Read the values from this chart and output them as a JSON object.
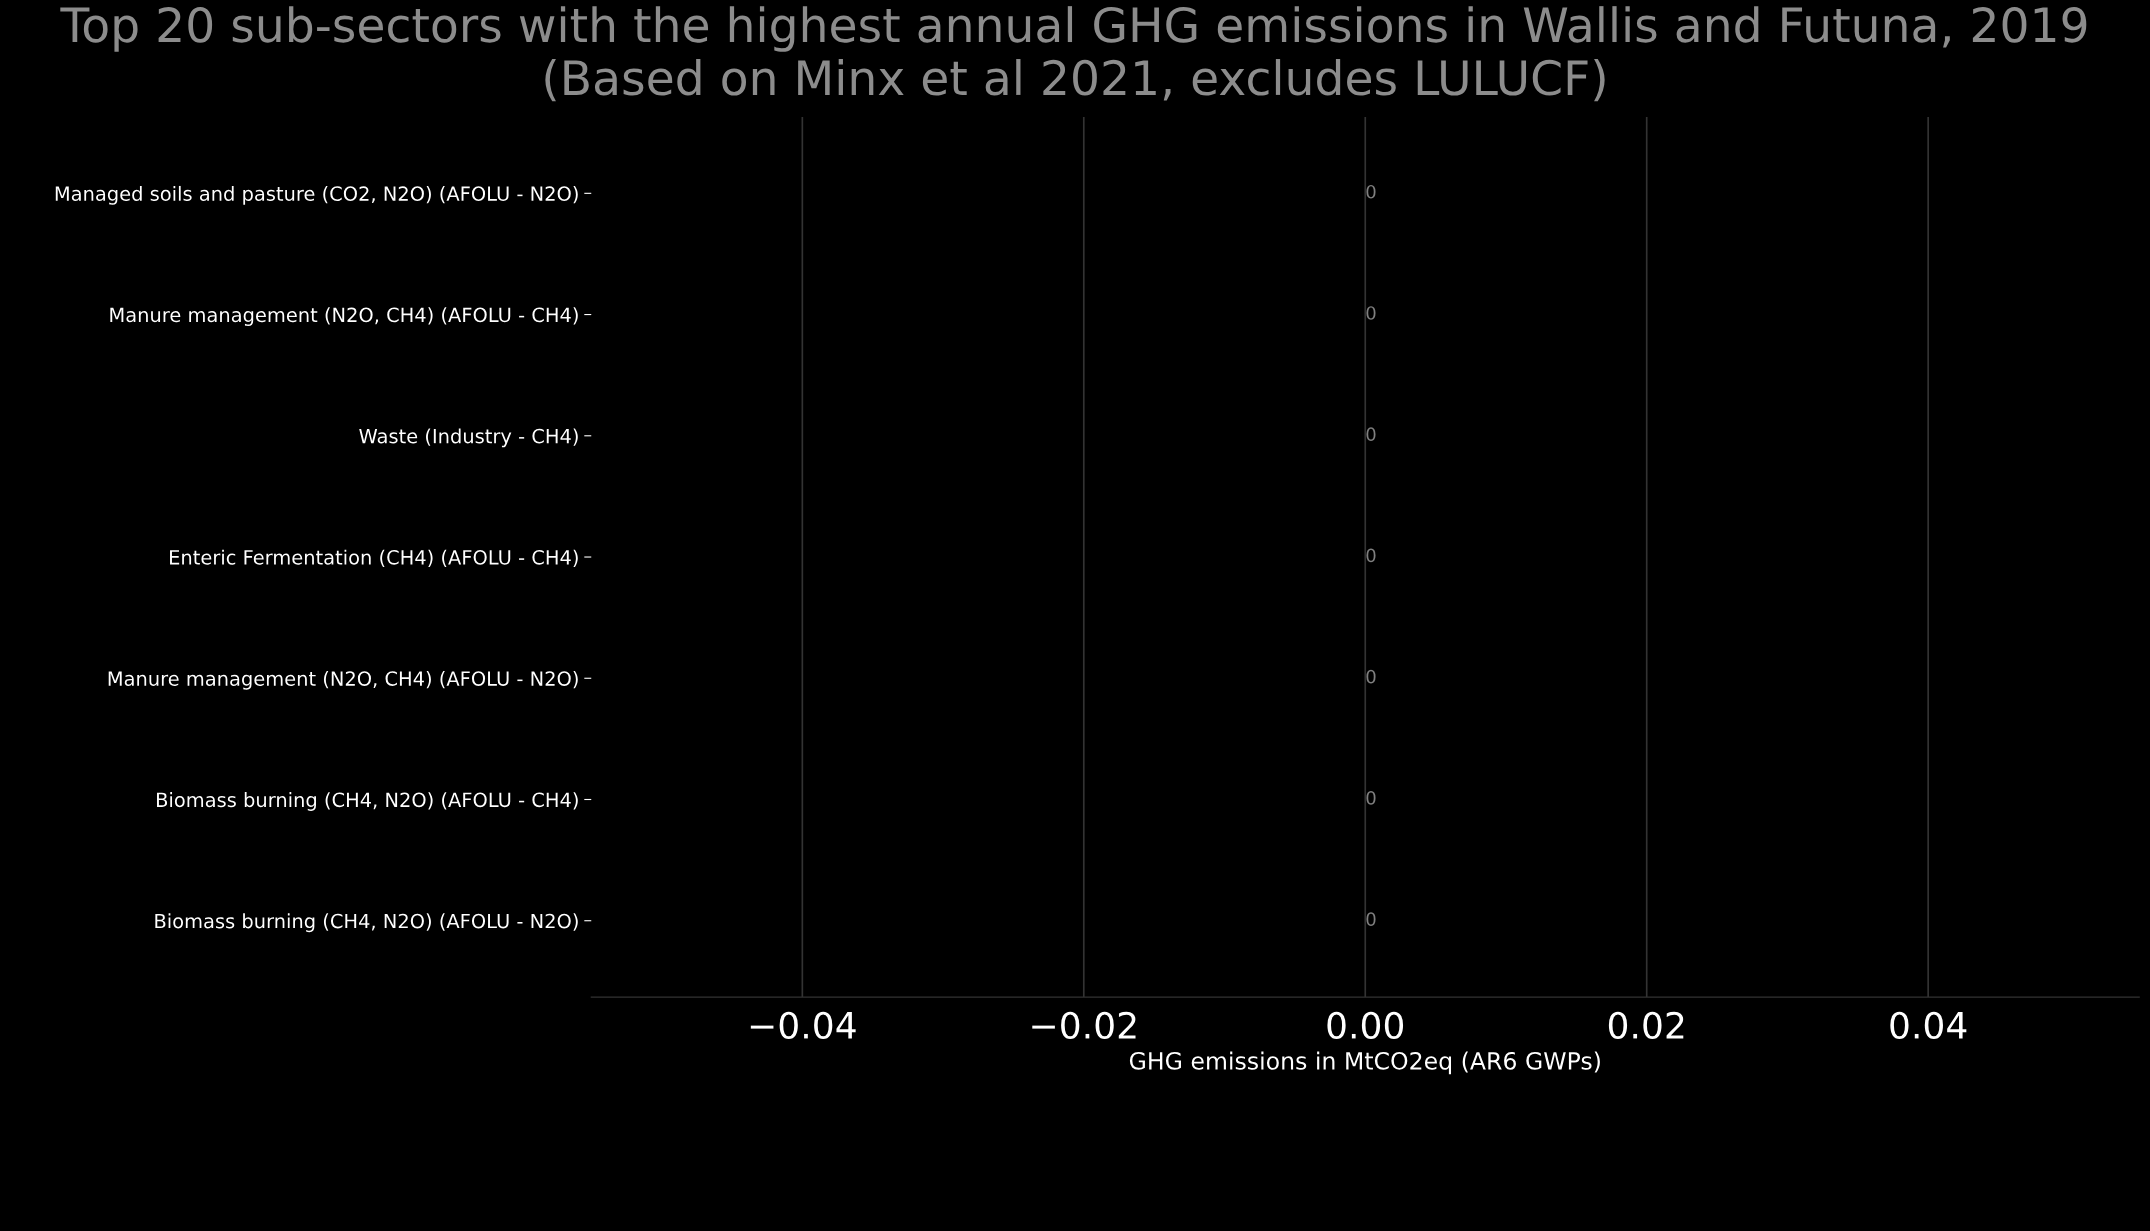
{
  "chart_data": {
    "type": "bar",
    "orientation": "horizontal",
    "title": "Top 20 sub-sectors with the highest annual GHG emissions in Wallis and Futuna, 2019\n(Based on Minx et al 2021, excludes LULUCF)",
    "xlabel": "GHG emissions in MtCO2eq (AR6 GWPs)",
    "categories": [
      "Managed soils and pasture (CO2, N2O) (AFOLU - N2O)",
      "Manure management (N2O, CH4) (AFOLU - CH4)",
      "Waste (Industry - CH4)",
      "Enteric Fermentation (CH4) (AFOLU - CH4)",
      "Manure management (N2O, CH4) (AFOLU - N2O)",
      "Biomass burning (CH4, N2O) (AFOLU - CH4)",
      "Biomass burning (CH4, N2O) (AFOLU - N2O)"
    ],
    "values": [
      0,
      0,
      0,
      0,
      0,
      0,
      0
    ],
    "data_labels": true,
    "xticks": [
      {
        "value": -0.04,
        "label": "−0.04"
      },
      {
        "value": -0.02,
        "label": "−0.02"
      },
      {
        "value": 0,
        "label": "0.00"
      },
      {
        "value": 0.02,
        "label": "0.02"
      },
      {
        "value": 0.04,
        "label": "0.04"
      }
    ],
    "xlim": [
      -0.055,
      0.055
    ],
    "grid": "x"
  }
}
